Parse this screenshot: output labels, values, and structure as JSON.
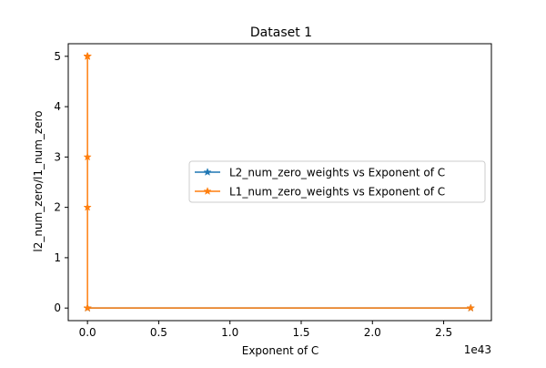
{
  "chart_data": {
    "type": "line",
    "title": "Dataset 1",
    "xlabel": "Exponent of C",
    "ylabel": "l2_num_zero/l1_num_zero",
    "x_offset_text": "1e43",
    "xlim": [
      -0.135,
      2.835
    ],
    "ylim": [
      -0.25,
      5.25
    ],
    "x_ticks": [
      0.0,
      0.5,
      1.0,
      1.5,
      2.0,
      2.5
    ],
    "x_tick_labels": [
      "0.0",
      "0.5",
      "1.0",
      "1.5",
      "2.0",
      "2.5"
    ],
    "y_ticks": [
      0,
      1,
      2,
      3,
      4,
      5
    ],
    "y_tick_labels": [
      "0",
      "1",
      "2",
      "3",
      "4",
      "5"
    ],
    "grid": false,
    "legend_position": "center-right",
    "series": [
      {
        "name": "L2_num_zero_weights vs Exponent of C",
        "color": "#1f77b4",
        "marker": "star",
        "x": [
          0.0,
          0.0,
          0.0,
          2.69
        ],
        "y": [
          0,
          0,
          0,
          0
        ]
      },
      {
        "name": "L1_num_zero_weights vs Exponent of C",
        "color": "#ff7f0e",
        "marker": "star",
        "x": [
          0.0,
          0.0,
          0.0,
          0.0,
          0.0,
          0.0,
          0.0,
          0.0,
          0.0,
          0.0,
          2.69
        ],
        "y": [
          5,
          5,
          5,
          5,
          5,
          5,
          3,
          2,
          0,
          0,
          0
        ]
      }
    ]
  }
}
